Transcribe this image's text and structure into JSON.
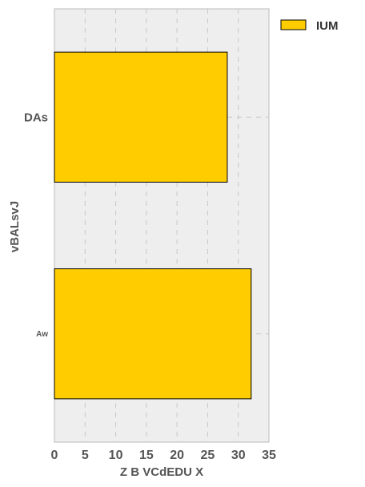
{
  "chart_data": {
    "type": "bar",
    "orientation": "horizontal",
    "categories": [
      "DAs",
      "Aw"
    ],
    "series": [
      {
        "name": "IUM",
        "values": [
          28.2,
          32.1
        ],
        "color": "#ffcc00"
      }
    ],
    "xlabel": "Z B VCdEDU X",
    "ylabel": "vBALsvJ",
    "xlim": [
      0,
      35
    ],
    "xticks": [
      0,
      5,
      10,
      15,
      20,
      25,
      30,
      35
    ],
    "grid": true,
    "legend_position": "top-right",
    "background_color": "#eeeeee"
  }
}
